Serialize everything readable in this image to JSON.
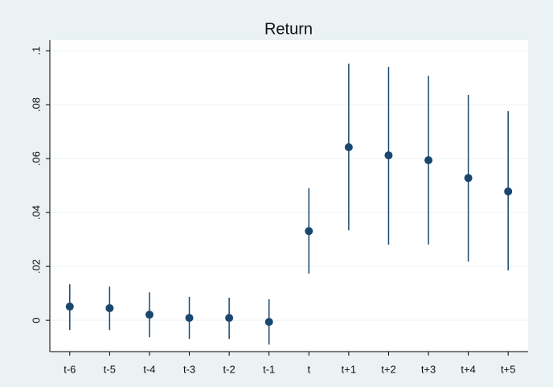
{
  "chart_data": {
    "type": "errorbar",
    "title": "Return",
    "categories": [
      "t-6",
      "t-5",
      "t-4",
      "t-3",
      "t-2",
      "t-1",
      "t",
      "t+1",
      "t+2",
      "t+3",
      "t+4",
      "t+5"
    ],
    "series": [
      {
        "color": "#1a476f",
        "values": [
          0.0051,
          0.0045,
          0.0021,
          0.0009,
          0.0009,
          -0.0006,
          0.0331,
          0.0642,
          0.0612,
          0.0594,
          0.0528,
          0.0478
        ],
        "lower": [
          -0.0036,
          -0.0036,
          -0.0063,
          -0.0069,
          -0.0069,
          -0.009,
          0.0173,
          0.0334,
          0.0281,
          0.0281,
          0.0218,
          0.0185
        ],
        "upper": [
          0.0134,
          0.0125,
          0.0104,
          0.0087,
          0.0084,
          0.0078,
          0.049,
          0.0952,
          0.094,
          0.0907,
          0.0836,
          0.0776
        ]
      }
    ],
    "ylim": [
      -0.0116,
      0.1039
    ],
    "yticks": [
      0,
      {
        "value": 0.02,
        "label": ".02"
      },
      {
        "value": 0.04,
        "label": ".04"
      },
      {
        "value": 0.06,
        "label": ".06"
      },
      {
        "value": 0.08,
        "label": ".08"
      },
      {
        "value": 0.1,
        "label": ".1"
      }
    ],
    "grid": true
  }
}
